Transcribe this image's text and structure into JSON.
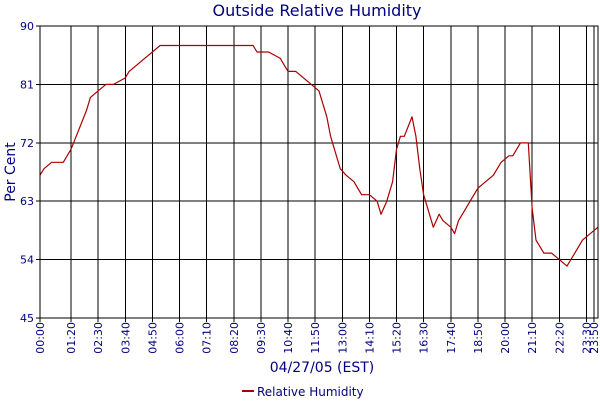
{
  "chart_data": {
    "type": "line",
    "title": "Outside Relative Humidity",
    "xlabel": "04/27/05 (EST)",
    "ylabel": "Per Cent",
    "ylim": [
      45,
      90
    ],
    "y_ticks": [
      45,
      54,
      63,
      72,
      81,
      90
    ],
    "x_range_minutes": [
      0,
      1440
    ],
    "x_ticks": [
      "00:00",
      "01:20",
      "02:30",
      "03:40",
      "04:50",
      "06:00",
      "07:10",
      "08:20",
      "09:30",
      "10:40",
      "11:50",
      "13:00",
      "14:10",
      "15:20",
      "16:30",
      "17:40",
      "18:50",
      "20:00",
      "21:10",
      "22:20",
      "23:30",
      "23:50"
    ],
    "grid": true,
    "legend_position": "bottom-center",
    "colors": {
      "series": "#aa0000",
      "grid": "#000000",
      "text": "#000080",
      "axis": "#000000"
    },
    "series": [
      {
        "name": "Relative Humidity",
        "x": [
          "00:00",
          "00:10",
          "00:30",
          "01:00",
          "01:20",
          "01:40",
          "02:00",
          "02:10",
          "02:30",
          "02:50",
          "03:10",
          "03:40",
          "03:50",
          "04:10",
          "04:30",
          "04:50",
          "05:10",
          "05:40",
          "06:30",
          "07:10",
          "08:00",
          "08:20",
          "08:50",
          "09:10",
          "09:20",
          "09:30",
          "09:50",
          "10:20",
          "10:30",
          "10:40",
          "11:00",
          "11:20",
          "11:40",
          "12:00",
          "12:10",
          "12:20",
          "12:30",
          "12:45",
          "12:55",
          "13:10",
          "13:30",
          "13:50",
          "14:10",
          "14:30",
          "14:40",
          "14:55",
          "15:10",
          "15:20",
          "15:30",
          "15:40",
          "16:00",
          "16:10",
          "16:20",
          "16:30",
          "16:40",
          "16:55",
          "17:10",
          "17:20",
          "17:40",
          "17:50",
          "18:00",
          "18:20",
          "18:30",
          "18:50",
          "19:10",
          "19:30",
          "19:50",
          "20:10",
          "20:20",
          "20:40",
          "20:50",
          "21:00",
          "21:10",
          "21:20",
          "21:40",
          "22:00",
          "22:20",
          "22:40",
          "23:00",
          "23:20",
          "23:40",
          "24:00"
        ],
        "values": [
          67,
          68,
          69,
          69,
          71,
          74,
          77,
          79,
          80,
          81,
          81,
          82,
          83,
          84,
          85,
          86,
          87,
          87,
          87,
          87,
          87,
          87,
          87,
          87,
          86,
          86,
          86,
          85,
          84,
          83,
          83,
          82,
          81,
          80,
          78,
          76,
          73,
          70,
          68,
          67,
          66,
          64,
          64,
          63,
          61,
          63,
          66,
          71,
          73,
          73,
          76,
          73,
          68,
          64,
          62,
          59,
          61,
          60,
          59,
          58,
          60,
          62,
          63,
          65,
          66,
          67,
          69,
          70,
          70,
          72,
          72,
          72,
          62,
          57,
          55,
          55,
          54,
          53,
          55,
          57,
          58,
          59
        ]
      }
    ]
  }
}
